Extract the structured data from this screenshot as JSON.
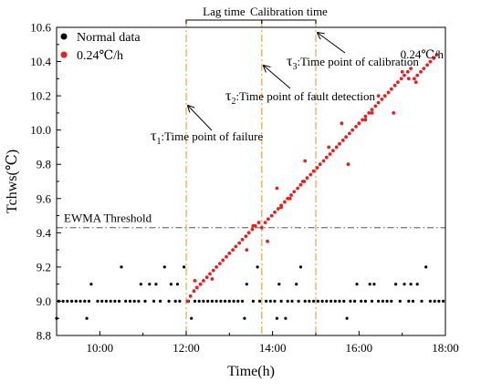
{
  "chart_data": {
    "type": "scatter",
    "xlabel": "Time(h)",
    "ylabel": "Tchws(℃)",
    "xlim": [
      9.0,
      18.0
    ],
    "ylim": [
      8.8,
      10.6
    ],
    "x_ticks": [
      {
        "value": 10,
        "label": "10:00"
      },
      {
        "value": 12,
        "label": "12:00"
      },
      {
        "value": 14,
        "label": "14:00"
      },
      {
        "value": 16,
        "label": "16:00"
      },
      {
        "value": 18,
        "label": "18:00"
      }
    ],
    "y_ticks": [
      {
        "value": 8.8,
        "label": "8.8"
      },
      {
        "value": 9.0,
        "label": "9.0"
      },
      {
        "value": 9.2,
        "label": "9.2"
      },
      {
        "value": 9.4,
        "label": "9.4"
      },
      {
        "value": 9.6,
        "label": "9.6"
      },
      {
        "value": 9.8,
        "label": "9.8"
      },
      {
        "value": 10.0,
        "label": "10.0"
      },
      {
        "value": 10.2,
        "label": "10.2"
      },
      {
        "value": 10.4,
        "label": "10.4"
      },
      {
        "value": 10.6,
        "label": "10.6"
      }
    ],
    "legend_position": "top-left",
    "series": [
      {
        "name": "Normal data",
        "color": "#000000",
        "points": [
          [
            9.0,
            8.9
          ],
          [
            9.05,
            9.0
          ],
          [
            9.15,
            9.0
          ],
          [
            9.25,
            9.0
          ],
          [
            9.35,
            9.0
          ],
          [
            9.45,
            9.0
          ],
          [
            9.55,
            9.0
          ],
          [
            9.65,
            9.0
          ],
          [
            9.7,
            8.9
          ],
          [
            9.75,
            9.0
          ],
          [
            9.8,
            9.1
          ],
          [
            9.95,
            9.0
          ],
          [
            10.05,
            9.0
          ],
          [
            10.15,
            9.0
          ],
          [
            10.25,
            9.0
          ],
          [
            10.35,
            9.0
          ],
          [
            10.45,
            9.0
          ],
          [
            10.5,
            9.2
          ],
          [
            10.6,
            9.0
          ],
          [
            10.7,
            9.0
          ],
          [
            10.8,
            9.0
          ],
          [
            10.9,
            9.0
          ],
          [
            10.95,
            9.1
          ],
          [
            11.05,
            9.0
          ],
          [
            11.15,
            9.1
          ],
          [
            11.25,
            9.0
          ],
          [
            11.3,
            9.1
          ],
          [
            11.4,
            9.0
          ],
          [
            11.5,
            9.2
          ],
          [
            11.6,
            9.0
          ],
          [
            11.65,
            9.1
          ],
          [
            11.75,
            9.0
          ],
          [
            11.8,
            9.1
          ],
          [
            11.85,
            9.0
          ],
          [
            11.95,
            9.2
          ],
          [
            12.05,
            9.0
          ],
          [
            12.12,
            8.9
          ],
          [
            12.2,
            9.0
          ],
          [
            12.3,
            9.0
          ],
          [
            12.4,
            9.0
          ],
          [
            12.5,
            9.0
          ],
          [
            12.6,
            9.0
          ],
          [
            12.7,
            9.0
          ],
          [
            12.8,
            9.0
          ],
          [
            12.9,
            9.0
          ],
          [
            13.0,
            9.0
          ],
          [
            13.1,
            9.0
          ],
          [
            13.2,
            9.0
          ],
          [
            13.3,
            9.0
          ],
          [
            13.35,
            8.9
          ],
          [
            13.4,
            9.1
          ],
          [
            13.55,
            9.0
          ],
          [
            13.65,
            9.2
          ],
          [
            13.7,
            9.0
          ],
          [
            13.85,
            9.0
          ],
          [
            13.95,
            9.0
          ],
          [
            14.05,
            9.0
          ],
          [
            14.1,
            8.9
          ],
          [
            14.15,
            9.1
          ],
          [
            14.2,
            9.0
          ],
          [
            14.3,
            8.9
          ],
          [
            14.35,
            9.0
          ],
          [
            14.45,
            9.0
          ],
          [
            14.55,
            9.1
          ],
          [
            14.6,
            9.0
          ],
          [
            14.65,
            9.2
          ],
          [
            14.75,
            9.0
          ],
          [
            14.85,
            9.0
          ],
          [
            14.95,
            9.0
          ],
          [
            15.05,
            9.0
          ],
          [
            15.15,
            9.0
          ],
          [
            15.25,
            9.0
          ],
          [
            15.35,
            9.0
          ],
          [
            15.45,
            9.0
          ],
          [
            15.55,
            9.0
          ],
          [
            15.65,
            9.0
          ],
          [
            15.72,
            8.9
          ],
          [
            15.8,
            9.0
          ],
          [
            15.9,
            9.0
          ],
          [
            15.95,
            9.1
          ],
          [
            16.05,
            9.0
          ],
          [
            16.15,
            9.0
          ],
          [
            16.25,
            9.1
          ],
          [
            16.3,
            9.0
          ],
          [
            16.35,
            9.1
          ],
          [
            16.45,
            9.0
          ],
          [
            16.55,
            9.0
          ],
          [
            16.65,
            9.0
          ],
          [
            16.75,
            9.0
          ],
          [
            16.85,
            9.1
          ],
          [
            16.95,
            9.0
          ],
          [
            17.05,
            9.1
          ],
          [
            17.15,
            9.0
          ],
          [
            17.2,
            9.1
          ],
          [
            17.25,
            9.0
          ],
          [
            17.35,
            9.1
          ],
          [
            17.45,
            9.0
          ],
          [
            17.55,
            9.2
          ],
          [
            17.65,
            9.0
          ],
          [
            17.75,
            9.0
          ],
          [
            17.85,
            9.0
          ],
          [
            17.95,
            9.0
          ]
        ]
      },
      {
        "name": "0.24℃/h",
        "color": "#ee1c1c",
        "points": [
          [
            12.03,
            9.0
          ],
          [
            12.1,
            9.03
          ],
          [
            12.18,
            9.06
          ],
          [
            12.25,
            9.08
          ],
          [
            12.33,
            9.1
          ],
          [
            12.4,
            9.12
          ],
          [
            12.48,
            9.14
          ],
          [
            12.55,
            9.16
          ],
          [
            12.63,
            9.18
          ],
          [
            12.7,
            9.2
          ],
          [
            12.78,
            9.22
          ],
          [
            12.85,
            9.24
          ],
          [
            12.93,
            9.26
          ],
          [
            13.0,
            9.28
          ],
          [
            13.08,
            9.3
          ],
          [
            13.15,
            9.32
          ],
          [
            13.23,
            9.34
          ],
          [
            13.3,
            9.36
          ],
          [
            13.38,
            9.38
          ],
          [
            13.45,
            9.4
          ],
          [
            13.53,
            9.42
          ],
          [
            13.6,
            9.44
          ],
          [
            13.68,
            9.46
          ],
          [
            13.75,
            9.43
          ],
          [
            13.83,
            9.46
          ],
          [
            13.9,
            9.48
          ],
          [
            13.98,
            9.5
          ],
          [
            14.05,
            9.52
          ],
          [
            14.13,
            9.54
          ],
          [
            14.2,
            9.56
          ],
          [
            14.28,
            9.58
          ],
          [
            14.35,
            9.6
          ],
          [
            14.43,
            9.62
          ],
          [
            14.5,
            9.64
          ],
          [
            14.58,
            9.66
          ],
          [
            14.65,
            9.68
          ],
          [
            14.73,
            9.7
          ],
          [
            14.8,
            9.72
          ],
          [
            14.88,
            9.74
          ],
          [
            14.95,
            9.76
          ],
          [
            15.03,
            9.78
          ],
          [
            15.1,
            9.8
          ],
          [
            15.18,
            9.82
          ],
          [
            15.25,
            9.84
          ],
          [
            15.33,
            9.86
          ],
          [
            15.4,
            9.88
          ],
          [
            15.48,
            9.9
          ],
          [
            15.55,
            9.92
          ],
          [
            15.63,
            9.94
          ],
          [
            15.7,
            9.96
          ],
          [
            15.78,
            9.98
          ],
          [
            15.85,
            10.0
          ],
          [
            15.93,
            10.02
          ],
          [
            16.0,
            10.04
          ],
          [
            16.08,
            10.06
          ],
          [
            16.15,
            10.08
          ],
          [
            16.23,
            10.1
          ],
          [
            16.3,
            10.12
          ],
          [
            16.38,
            10.14
          ],
          [
            16.45,
            10.16
          ],
          [
            16.53,
            10.18
          ],
          [
            16.6,
            10.2
          ],
          [
            16.68,
            10.22
          ],
          [
            16.75,
            10.24
          ],
          [
            16.83,
            10.26
          ],
          [
            16.9,
            10.28
          ],
          [
            16.98,
            10.3
          ],
          [
            17.05,
            10.32
          ],
          [
            17.13,
            10.34
          ],
          [
            17.2,
            10.36
          ],
          [
            17.28,
            10.3
          ],
          [
            17.35,
            10.32
          ],
          [
            17.43,
            10.34
          ],
          [
            17.5,
            10.36
          ],
          [
            17.58,
            10.38
          ],
          [
            17.65,
            10.4
          ],
          [
            17.73,
            10.42
          ],
          [
            17.8,
            10.44
          ],
          [
            12.2,
            9.12
          ],
          [
            12.6,
            9.13
          ],
          [
            13.4,
            9.3
          ],
          [
            13.55,
            9.44
          ],
          [
            13.88,
            9.35
          ],
          [
            14.1,
            9.66
          ],
          [
            14.2,
            9.55
          ],
          [
            14.4,
            9.6
          ],
          [
            14.7,
            9.7
          ],
          [
            14.75,
            9.82
          ],
          [
            15.3,
            9.9
          ],
          [
            15.6,
            10.04
          ],
          [
            15.75,
            9.8
          ],
          [
            16.15,
            10.06
          ],
          [
            16.3,
            10.1
          ],
          [
            16.45,
            10.2
          ],
          [
            16.8,
            10.1
          ],
          [
            17.0,
            10.34
          ],
          [
            17.15,
            10.3
          ],
          [
            17.32,
            10.28
          ]
        ]
      }
    ],
    "threshold": {
      "label": "EWMA Threshold",
      "value": 9.43
    },
    "events": [
      {
        "id": "tau1",
        "x": 12.0,
        "symbol": "τ",
        "subscript": "1",
        "label": ":Time point of failure"
      },
      {
        "id": "tau2",
        "x": 13.75,
        "symbol": "τ",
        "subscript": "2",
        "label": ":Time point of fault detection"
      },
      {
        "id": "tau3",
        "x": 15.0,
        "symbol": "τ",
        "subscript": "3",
        "label": ":Time point of calibration"
      }
    ],
    "brackets": [
      {
        "label": "Lag time",
        "from": 12.0,
        "to": 13.75
      },
      {
        "label": "Calibration time",
        "from": 13.75,
        "to": 15.0
      }
    ],
    "series_annotation": "0.24℃/h"
  }
}
